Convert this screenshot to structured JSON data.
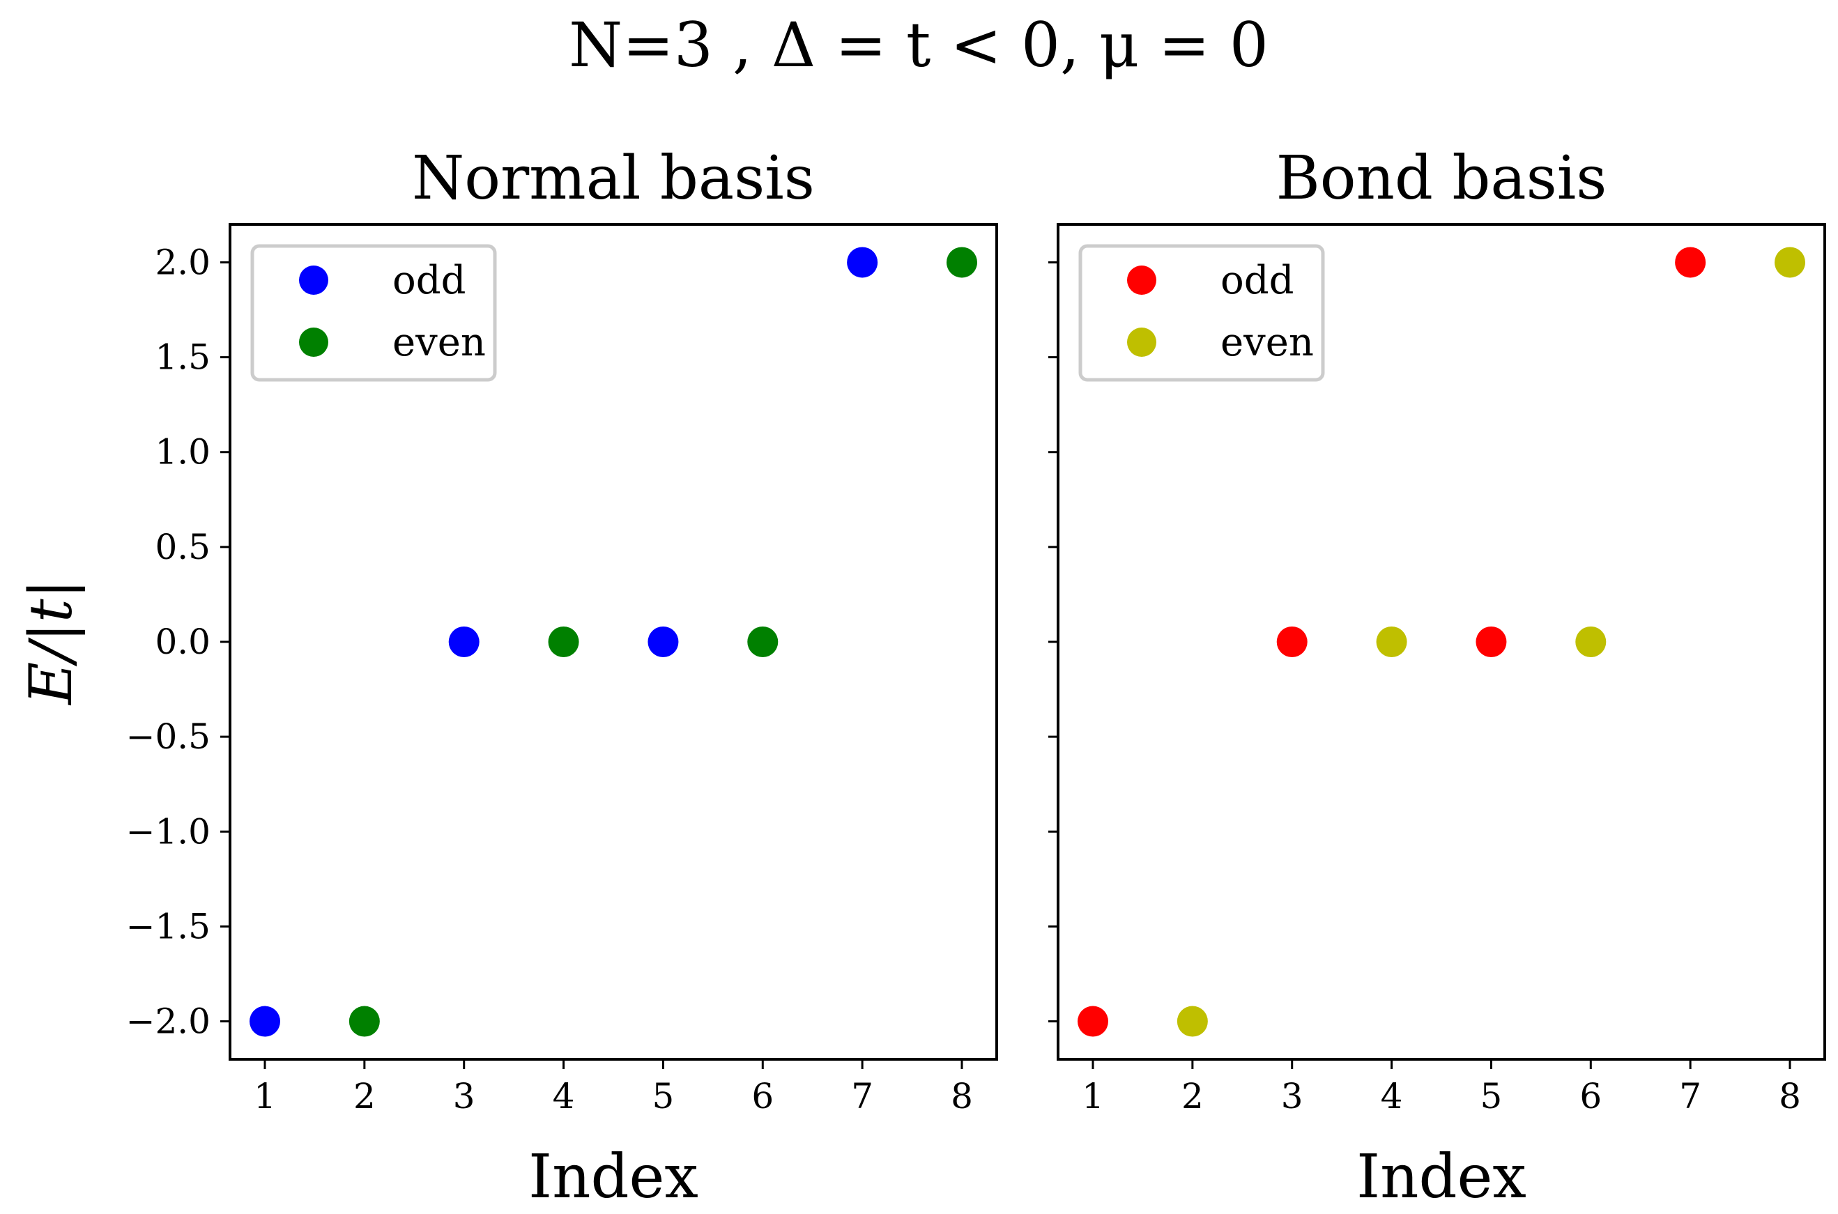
{
  "suptitle": "N=3 , Δ = t < 0, μ = 0",
  "ylabel": "E/|t|",
  "chart_data": [
    {
      "type": "scatter",
      "title": "Normal basis",
      "xlabel": "Index",
      "ylabel": "E/|t|",
      "xlim": [
        0.65,
        8.35
      ],
      "ylim": [
        -2.2,
        2.2
      ],
      "xticks": [
        1,
        2,
        3,
        4,
        5,
        6,
        7,
        8
      ],
      "yticks": [
        2.0,
        1.5,
        1.0,
        0.5,
        0.0,
        -0.5,
        -1.0,
        -1.5,
        -2.0
      ],
      "ytick_labels": [
        "2.0",
        "1.5",
        "1.0",
        "0.5",
        "0.0",
        "−0.5",
        "−1.0",
        "−1.5",
        "−2.0"
      ],
      "legend_position": "upper left",
      "series": [
        {
          "name": "odd",
          "color": "#0000ff",
          "x": [
            1,
            3,
            5,
            7
          ],
          "y": [
            -2.0,
            0.0,
            0.0,
            2.0
          ]
        },
        {
          "name": "even",
          "color": "#008000",
          "x": [
            2,
            4,
            6,
            8
          ],
          "y": [
            -2.0,
            0.0,
            0.0,
            2.0
          ]
        }
      ]
    },
    {
      "type": "scatter",
      "title": "Bond basis",
      "xlabel": "Index",
      "ylabel": "",
      "xlim": [
        0.65,
        8.35
      ],
      "ylim": [
        -2.2,
        2.2
      ],
      "xticks": [
        1,
        2,
        3,
        4,
        5,
        6,
        7,
        8
      ],
      "yticks": [
        2.0,
        1.5,
        1.0,
        0.5,
        0.0,
        -0.5,
        -1.0,
        -1.5,
        -2.0
      ],
      "ytick_labels": [],
      "legend_position": "upper left",
      "series": [
        {
          "name": "odd",
          "color": "#ff0000",
          "x": [
            1,
            3,
            5,
            7
          ],
          "y": [
            -2.0,
            0.0,
            0.0,
            2.0
          ]
        },
        {
          "name": "even",
          "color": "#bfbf00",
          "x": [
            2,
            4,
            6,
            8
          ],
          "y": [
            -2.0,
            0.0,
            0.0,
            2.0
          ]
        }
      ]
    }
  ]
}
